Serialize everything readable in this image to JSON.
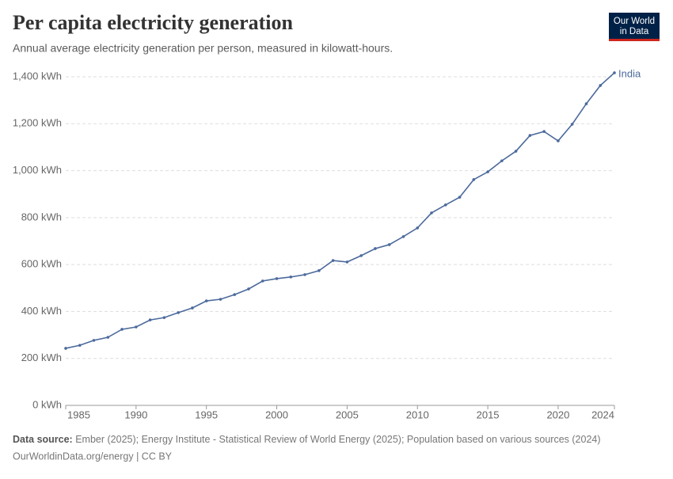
{
  "chart_data": {
    "type": "line",
    "title": "Per capita electricity generation",
    "subtitle": "Annual average electricity generation per person, measured in kilowatt-hours.",
    "logo": [
      "Our World",
      "in Data"
    ],
    "source_label": "Data source:",
    "source": "Ember (2025); Energy Institute - Statistical Review of World Energy (2025); Population based on various sources (2024)",
    "footer": "OurWorldinData.org/energy | CC BY",
    "x": [
      1985,
      1986,
      1987,
      1988,
      1989,
      1990,
      1991,
      1992,
      1993,
      1994,
      1995,
      1996,
      1997,
      1998,
      1999,
      2000,
      2001,
      2002,
      2003,
      2004,
      2005,
      2006,
      2007,
      2008,
      2009,
      2010,
      2011,
      2012,
      2013,
      2014,
      2015,
      2016,
      2017,
      2018,
      2019,
      2020,
      2021,
      2022,
      2023,
      2024
    ],
    "series": [
      {
        "name": "India",
        "color": "#4c6a9c",
        "values": [
          243,
          256,
          277,
          290,
          324,
          334,
          364,
          374,
          395,
          415,
          445,
          452,
          472,
          496,
          530,
          540,
          547,
          557,
          574,
          617,
          611,
          638,
          668,
          685,
          719,
          756,
          820,
          854,
          887,
          962,
          995,
          1042,
          1083,
          1150,
          1167,
          1127,
          1198,
          1285,
          1363,
          1417
        ]
      }
    ],
    "xlim": [
      1985,
      2024
    ],
    "xticks": [
      1985,
      1990,
      1995,
      2000,
      2005,
      2010,
      2015,
      2020,
      2024
    ],
    "ylim": [
      0,
      1400
    ],
    "yticks": [
      {
        "value": 0,
        "label": "0 kWh"
      },
      {
        "value": 200,
        "label": "200 kWh"
      },
      {
        "value": 400,
        "label": "400 kWh"
      },
      {
        "value": 600,
        "label": "600 kWh"
      },
      {
        "value": 800,
        "label": "800 kWh"
      },
      {
        "value": 1000,
        "label": "1,000 kWh"
      },
      {
        "value": 1200,
        "label": "1,200 kWh"
      },
      {
        "value": 1400,
        "label": "1,400 kWh"
      }
    ],
    "grid": true
  }
}
